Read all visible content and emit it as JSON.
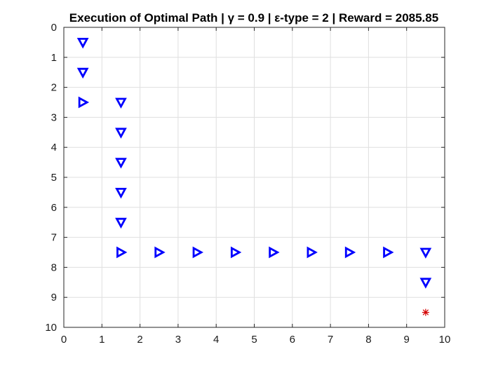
{
  "chart_data": {
    "type": "scatter",
    "title": "Execution of Optimal Path | γ = 0.9 | ε-type = 2 | Reward = 2085.85",
    "xlabel": "",
    "ylabel": "",
    "xlim": [
      0,
      10
    ],
    "ylim": [
      0,
      10
    ],
    "y_reversed": true,
    "grid": true,
    "x_ticks": [
      "0",
      "1",
      "2",
      "3",
      "4",
      "5",
      "6",
      "7",
      "8",
      "9",
      "10"
    ],
    "y_ticks": [
      "0",
      "1",
      "2",
      "3",
      "4",
      "5",
      "6",
      "7",
      "8",
      "9",
      "10"
    ],
    "series": [
      {
        "marker": "triangle-down",
        "color": "#0000ff",
        "points": [
          {
            "x": 0.5,
            "y": 0.5
          },
          {
            "x": 0.5,
            "y": 1.5
          },
          {
            "x": 1.5,
            "y": 2.5
          },
          {
            "x": 1.5,
            "y": 3.5
          },
          {
            "x": 1.5,
            "y": 4.5
          },
          {
            "x": 1.5,
            "y": 5.5
          },
          {
            "x": 1.5,
            "y": 6.5
          },
          {
            "x": 9.5,
            "y": 7.5
          },
          {
            "x": 9.5,
            "y": 8.5
          }
        ]
      },
      {
        "marker": "triangle-right",
        "color": "#0000ff",
        "points": [
          {
            "x": 0.5,
            "y": 2.5
          },
          {
            "x": 1.5,
            "y": 7.5
          },
          {
            "x": 2.5,
            "y": 7.5
          },
          {
            "x": 3.5,
            "y": 7.5
          },
          {
            "x": 4.5,
            "y": 7.5
          },
          {
            "x": 5.5,
            "y": 7.5
          },
          {
            "x": 6.5,
            "y": 7.5
          },
          {
            "x": 7.5,
            "y": 7.5
          },
          {
            "x": 8.5,
            "y": 7.5
          }
        ]
      },
      {
        "marker": "asterisk",
        "color": "#d40000",
        "points": [
          {
            "x": 9.5,
            "y": 9.5
          }
        ]
      }
    ]
  }
}
